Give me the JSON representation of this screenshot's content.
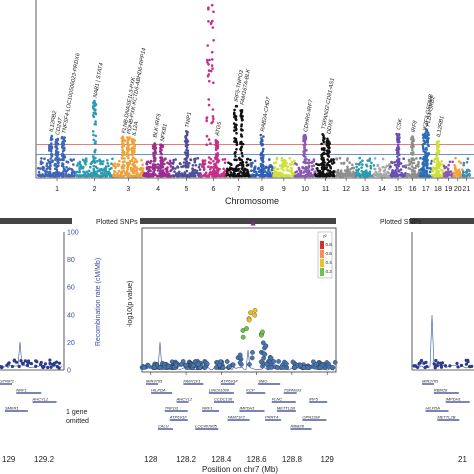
{
  "colors": {
    "chr_palette": [
      "#3f66b8",
      "#2a9bb0",
      "#f0a23a",
      "#9b2f8f",
      "#4e4e9a",
      "#c62f8a",
      "#111111",
      "#2f5fb5",
      "#cfe03a",
      "#8a59b3",
      "#111111",
      "#8e8e8e",
      "#2a9bb0",
      "#a8a8a8",
      "#6a4fb3",
      "#8e8e8e",
      "#2d6db5",
      "#cfe03a",
      "#8a59b3",
      "#f0a23a",
      "#3f8fb5",
      "#444444"
    ],
    "threshold_red": "#d9534f",
    "threshold_blue": "#3b6cb0",
    "recomb_line": "#3b4fa0",
    "r2_colors": [
      "#d73027",
      "#fc8d59",
      "#f0c020",
      "#6cc24a",
      "#4575b4"
    ],
    "gene_blue": "#2b3a8c"
  },
  "manhattan": {
    "xlabel": "Chromosome",
    "chromosomes": [
      "1",
      "2",
      "3",
      "4",
      "5",
      "6",
      "7",
      "8",
      "9",
      "10",
      "11",
      "12",
      "13",
      "14",
      "15",
      "16",
      "17",
      "18",
      "19",
      "20",
      "21"
    ],
    "chr_sizes": [
      249,
      243,
      198,
      191,
      181,
      171,
      159,
      146,
      141,
      135,
      135,
      133,
      115,
      107,
      102,
      90,
      81,
      78,
      59,
      64,
      48
    ],
    "hits": [
      {
        "chr": "1",
        "text": "IL12RB2",
        "peak": 9.5
      },
      {
        "chr": "1",
        "text": "CD247",
        "peak": 8.8
      },
      {
        "chr": "1",
        "text": "TNFSF4-LOC100506023-PRDX6",
        "peak": 9.1
      },
      {
        "chr": "2",
        "text": "NAB1 | STAT4",
        "peak": 17.5
      },
      {
        "chr": "3",
        "text": "FLNB-DNASE1L3-PXK",
        "peak": 9.2
      },
      {
        "chr": "3",
        "text": "PDHB-PXK-KCTD6-ABHD6-RPP14",
        "peak": 9.0
      },
      {
        "chr": "3",
        "text": "IL12A",
        "peak": 8.6
      },
      {
        "chr": "4",
        "text": "BLK-IRF5",
        "peak": 8.2
      },
      {
        "chr": "4",
        "text": "NFKB1",
        "peak": 7.3
      },
      {
        "chr": "5",
        "text": "TNIP1",
        "peak": 10.5
      },
      {
        "chr": "6",
        "text": "MHC",
        "peak": 40.0
      },
      {
        "chr": "6",
        "text": "ATG5",
        "peak": 8.6
      },
      {
        "chr": "7",
        "text": "IRF5-TNPO3",
        "peak": 16.5
      },
      {
        "chr": "7",
        "text": "FAM167A-BLK",
        "peak": 15.8
      },
      {
        "chr": "8",
        "text": "RAB2A-CHD7",
        "peak": 9.6
      },
      {
        "chr": "10",
        "text": "CDHR5-IRF7",
        "peak": 9.5
      },
      {
        "chr": "11",
        "text": "TSPAN32-CD81-AS1",
        "peak": 10.1
      },
      {
        "chr": "11",
        "text": "DDX6",
        "peak": 9.0
      },
      {
        "chr": "15",
        "text": "CSK",
        "peak": 10.0
      },
      {
        "chr": "16",
        "text": "IRF8",
        "peak": 9.4
      },
      {
        "chr": "17",
        "text": "IKZF3-GSDMB",
        "peak": 9.8
      },
      {
        "chr": "17",
        "text": "PLD4-GRB2",
        "peak": 10.8
      },
      {
        "chr": "18",
        "text": "IL12RB1",
        "peak": 8.3
      }
    ],
    "y_max": 40.0,
    "threshold_lines": [
      5.0,
      7.3
    ]
  },
  "chart_data": [
    {
      "type": "scatter",
      "title": "",
      "xlabel": "",
      "ylabel": "-log10(p value)",
      "xlim": [
        128.85,
        129.25
      ],
      "ticks_x": [
        "129",
        "129.2"
      ],
      "genes": [
        {
          "name": "STRIP2"
        },
        {
          "name": "NRF1"
        },
        {
          "name": "AHCYL2"
        },
        {
          "name": "SMKR1"
        }
      ],
      "omitted_note": "1 gene omitted",
      "snp_label": "Plotted SNPs"
    },
    {
      "type": "scatter",
      "title": "",
      "xlabel": "Position on chr7 (Mb)",
      "ylabel": "-log10(p value)",
      "y2label": "Recombination rate (cM/Mb)",
      "y2ticks": [
        "0",
        "20",
        "40",
        "60",
        "80",
        "100"
      ],
      "xticks": [
        "128",
        "128.2",
        "128.4",
        "128.6",
        "128.8",
        "129"
      ],
      "xlim": [
        127.95,
        129.05
      ],
      "y2lim": [
        0,
        100
      ],
      "legend_title": "r²",
      "legend_items": [
        "0.8",
        "0.6",
        "0.4",
        "0.2"
      ],
      "snp_label": "Plotted SNPs",
      "genes": [
        {
          "name": "MIR3765"
        },
        {
          "name": "LINC01000"
        },
        {
          "name": "FLNC"
        },
        {
          "name": "TNPO3"
        },
        {
          "name": "FAM71F2"
        },
        {
          "name": "RBM28"
        },
        {
          "name": "FAM71F1"
        },
        {
          "name": "KCP"
        },
        {
          "name": "IRF5"
        },
        {
          "name": "NRF1"
        },
        {
          "name": "PRRT4"
        },
        {
          "name": "CALU"
        },
        {
          "name": "ATP6V1F"
        },
        {
          "name": "TSPAN33"
        },
        {
          "name": "AHCYL2"
        },
        {
          "name": "IMPDH1"
        },
        {
          "name": "OPN1SW"
        },
        {
          "name": "LOC407835"
        },
        {
          "name": "SMO"
        },
        {
          "name": "HILPDA"
        },
        {
          "name": "CCDC136"
        },
        {
          "name": "METTL2B"
        },
        {
          "name": "ATP6V1F"
        }
      ],
      "peak_position": 128.58,
      "peak_value": 16.5
    },
    {
      "type": "scatter",
      "title": "",
      "xlabel": "",
      "ylabel": "",
      "xticks": [
        "21"
      ],
      "snp_label": "Plotted SNPs",
      "genes": [
        {
          "name": "MIR3765"
        },
        {
          "name": "RBM28"
        },
        {
          "name": "IMPDH1"
        },
        {
          "name": "HILPDA"
        },
        {
          "name": "METTL2B"
        }
      ]
    }
  ]
}
